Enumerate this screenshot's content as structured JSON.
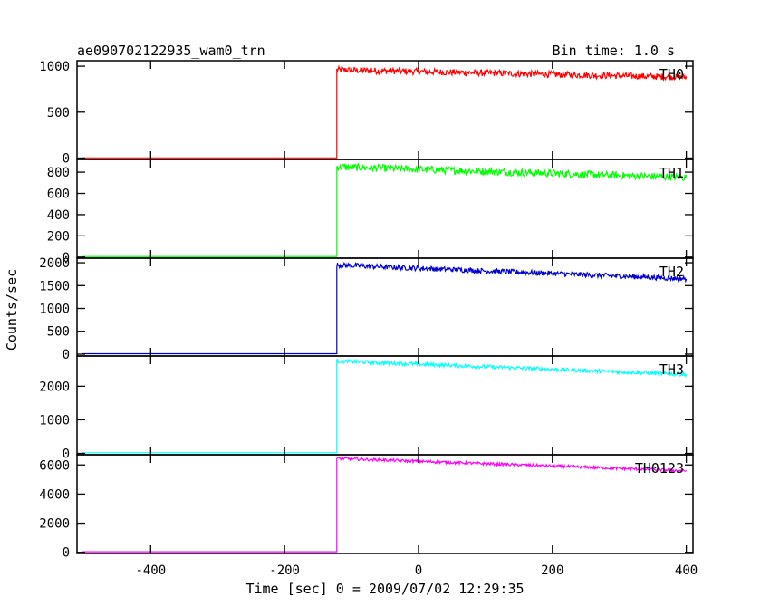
{
  "chart_data": {
    "type": "line",
    "title": "ae090702122935_wam0_trn",
    "bin_time": "Bin time: 1.0 s",
    "xlabel": "Time [sec] 0 = 2009/07/02 12:29:35",
    "ylabel": "Counts/sec",
    "xlim": [
      -510,
      410
    ],
    "x_ticks": [
      -400,
      -200,
      0,
      200,
      400
    ],
    "trigger_time": -122,
    "x_end": 400,
    "panels": [
      {
        "name": "TH0",
        "color": "#ff0000",
        "ylim": [
          -15,
          1060
        ],
        "y_ticks": [
          0,
          500,
          1000
        ],
        "pre_level": 2,
        "peak": 960,
        "end_level": 880,
        "noise": 22
      },
      {
        "name": "TH1",
        "color": "#00ff00",
        "ylim": [
          -10,
          920
        ],
        "y_ticks": [
          0,
          200,
          400,
          600,
          800
        ],
        "pre_level": 5,
        "peak": 850,
        "end_level": 750,
        "noise": 22
      },
      {
        "name": "TH2",
        "color": "#0000cc",
        "ylim": [
          -40,
          2100
        ],
        "y_ticks": [
          0,
          500,
          1000,
          1500,
          2000
        ],
        "pre_level": 10,
        "peak": 1950,
        "end_level": 1650,
        "noise": 35
      },
      {
        "name": "TH3",
        "color": "#00ffff",
        "ylim": [
          -40,
          2900
        ],
        "y_ticks": [
          0,
          1000,
          2000
        ],
        "pre_level": 20,
        "peak": 2750,
        "end_level": 2350,
        "noise": 35
      },
      {
        "name": "TH0123",
        "color": "#ff00ff",
        "ylim": [
          -80,
          6700
        ],
        "y_ticks": [
          0,
          2000,
          4000,
          6000
        ],
        "pre_level": 40,
        "peak": 6450,
        "end_level": 5600,
        "noise": 60
      }
    ]
  }
}
